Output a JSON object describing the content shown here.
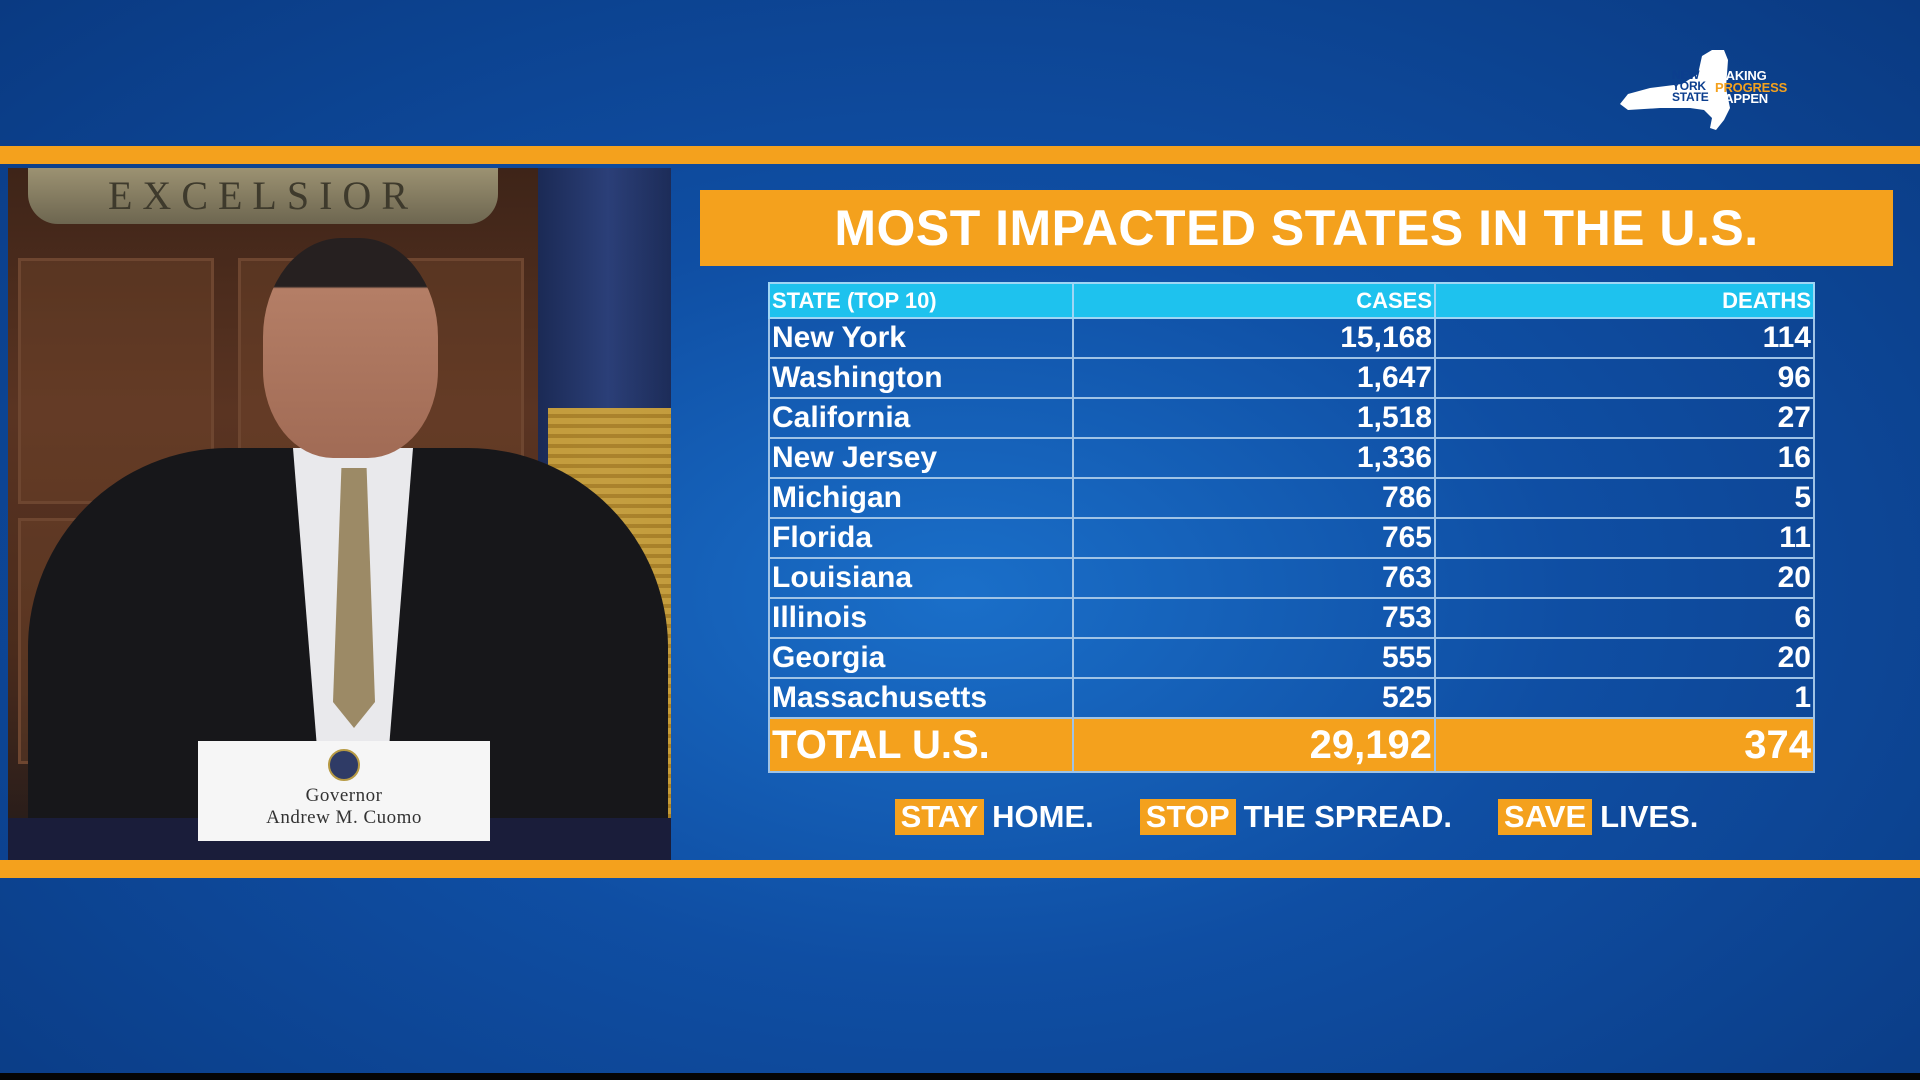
{
  "logo": {
    "state_lines": [
      "NEW",
      "YORK",
      "STATE"
    ],
    "tagline_lines": [
      "MAKING",
      "PROGRESS",
      "HAPPEN"
    ]
  },
  "video": {
    "plaque_text": "EXCELSIOR",
    "nameplate": {
      "title": "Governor",
      "name": "Andrew M. Cuomo"
    }
  },
  "board": {
    "title": "MOST IMPACTED STATES IN THE U.S.",
    "headers": [
      "STATE (TOP 10)",
      "CASES",
      "DEATHS"
    ],
    "rows": [
      [
        "New York",
        "15,168",
        "114"
      ],
      [
        "Washington",
        "1,647",
        "96"
      ],
      [
        "California",
        "1,518",
        "27"
      ],
      [
        "New Jersey",
        "1,336",
        "16"
      ],
      [
        "Michigan",
        "786",
        "5"
      ],
      [
        "Florida",
        "765",
        "11"
      ],
      [
        "Louisiana",
        "763",
        "20"
      ],
      [
        "Illinois",
        "753",
        "6"
      ],
      [
        "Georgia",
        "555",
        "20"
      ],
      [
        "Massachusetts",
        "525",
        "1"
      ]
    ],
    "total": [
      "TOTAL U.S.",
      "29,192",
      "374"
    ]
  },
  "slogan": [
    {
      "highlight": "STAY",
      "rest": "HOME."
    },
    {
      "highlight": "STOP",
      "rest": "THE SPREAD."
    },
    {
      "highlight": "SAVE",
      "rest": "LIVES."
    }
  ],
  "colors": {
    "accent": "#f4a11d",
    "header_cyan": "#1ec2ee",
    "background_blue": "#0f4ea3"
  }
}
